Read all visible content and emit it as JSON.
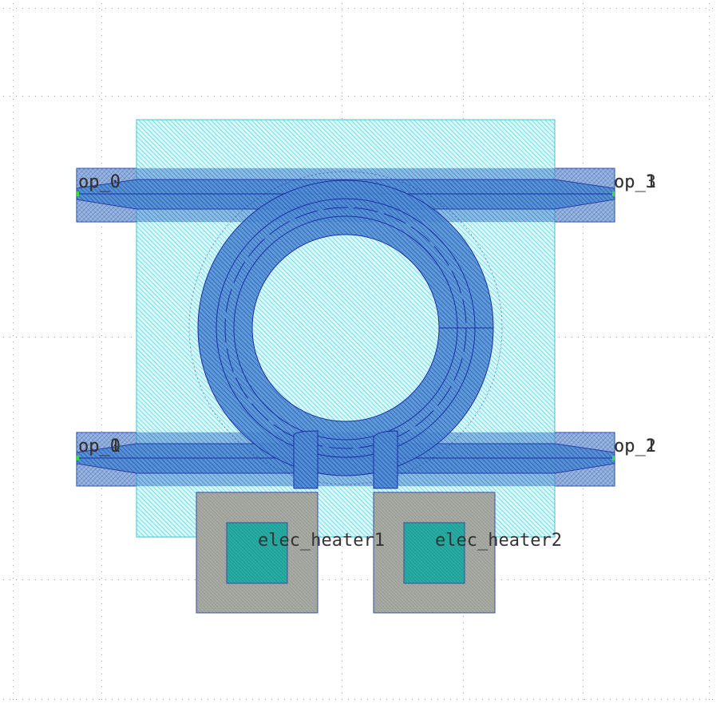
{
  "colors": {
    "background": "#ffffff",
    "grid_dot": "#9a9a9a",
    "slab_fill": "#22ccdd",
    "slab_outline": "#22bbcc",
    "waveguide_fill": "#3a68c8",
    "waveguide_outline": "#1d2fa6",
    "cladding_fill": "#b0a8c6",
    "pad_fill": "#a0a69e",
    "pad_outline": "#3b4fa2",
    "via_fill": "#1fa7a0",
    "port_marker": "#33dd44",
    "label_text": "#333333"
  },
  "ports": [
    {
      "id": "op_0",
      "text_a": "op_0",
      "text_b": "op_0"
    },
    {
      "id": "op_3",
      "text_a": "op_1",
      "text_b": "op_3"
    },
    {
      "id": "op_1",
      "text_a": "op_1",
      "text_b": "op_0"
    },
    {
      "id": "op_2",
      "text_a": "op_1",
      "text_b": "op_2"
    }
  ],
  "pads": [
    {
      "id": "elec_heater1",
      "label": "elec_heater1"
    },
    {
      "id": "elec_heater2",
      "label": "elec_heater2"
    }
  ]
}
